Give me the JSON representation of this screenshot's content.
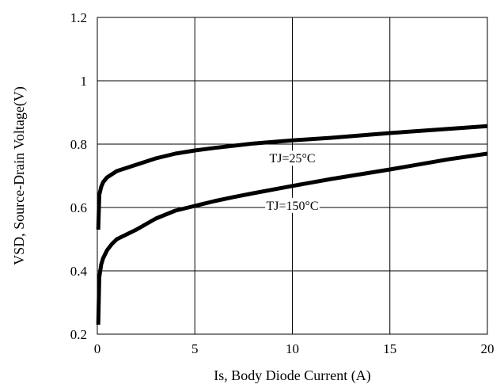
{
  "chart_data": {
    "type": "line",
    "xlabel": "Is, Body Diode Current (A)",
    "ylabel": "VSD, Source-Drain Voltage(V)",
    "xlim": [
      0,
      20
    ],
    "ylim": [
      0.2,
      1.2
    ],
    "x_ticks": [
      0,
      5,
      10,
      15,
      20
    ],
    "x_tick_labels": [
      "0",
      "5",
      "10",
      "15",
      "20"
    ],
    "y_ticks": [
      0.2,
      0.4,
      0.6,
      0.8,
      1.0,
      1.2
    ],
    "y_tick_labels": [
      "0.2",
      "0.4",
      "0.6",
      "0.8",
      "1",
      "1.2"
    ],
    "grid": true,
    "legend": "none",
    "series": [
      {
        "name": "TJ=25°C",
        "color": "#000000",
        "x": [
          0.05,
          0.1,
          0.2,
          0.3,
          0.5,
          0.75,
          1,
          1.5,
          2,
          3,
          4,
          5,
          6,
          7,
          8,
          10,
          12,
          15,
          18,
          20
        ],
        "y": [
          0.53,
          0.64,
          0.665,
          0.68,
          0.695,
          0.705,
          0.715,
          0.725,
          0.735,
          0.755,
          0.77,
          0.78,
          0.788,
          0.795,
          0.802,
          0.812,
          0.82,
          0.835,
          0.848,
          0.857
        ]
      },
      {
        "name": "TJ=150°C",
        "color": "#000000",
        "x": [
          0.05,
          0.1,
          0.2,
          0.3,
          0.5,
          0.75,
          1,
          1.5,
          2,
          3,
          4,
          5,
          6,
          7,
          8,
          10,
          12,
          15,
          18,
          20
        ],
        "y": [
          0.23,
          0.38,
          0.42,
          0.44,
          0.465,
          0.485,
          0.5,
          0.515,
          0.53,
          0.565,
          0.59,
          0.605,
          0.62,
          0.633,
          0.645,
          0.668,
          0.69,
          0.72,
          0.752,
          0.77
        ]
      }
    ],
    "annotations": [
      {
        "text": "TJ=25°C",
        "series": 0
      },
      {
        "text": "TJ=150°C",
        "series": 1
      }
    ]
  }
}
